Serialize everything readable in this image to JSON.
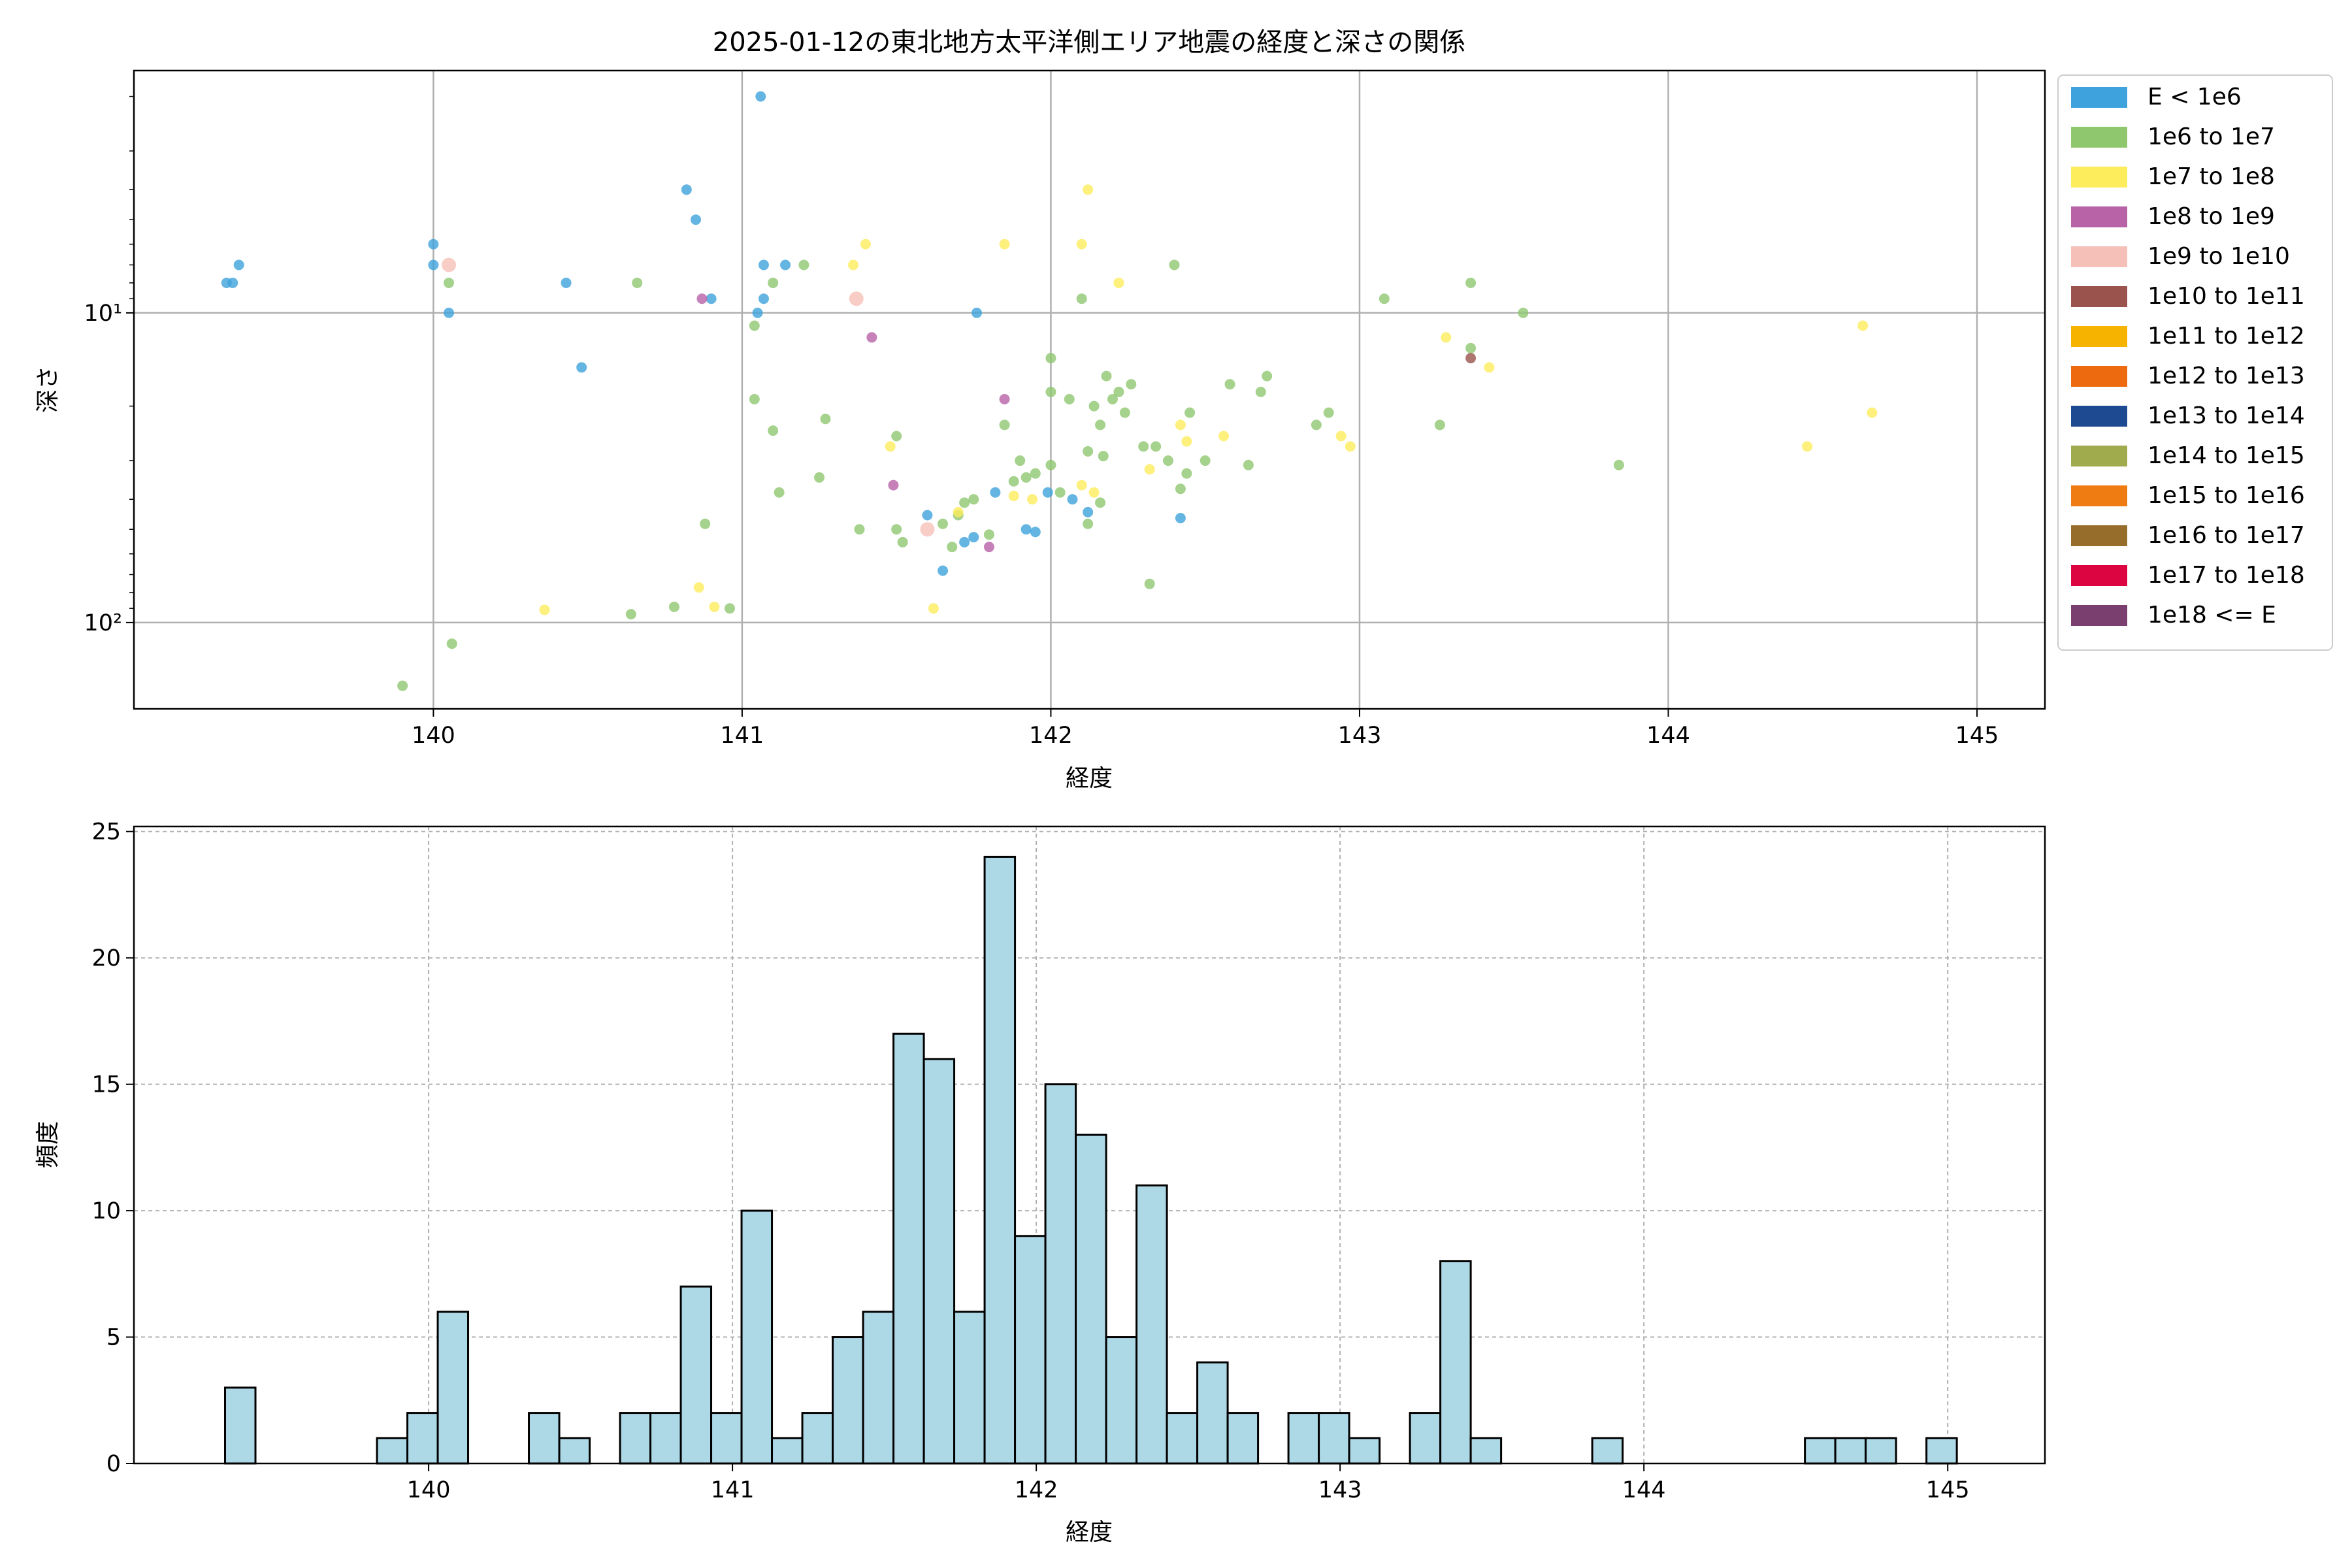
{
  "title": "2025-01-12の東北地方太平洋側エリア地震の経度と深さの関係",
  "chart_data": [
    {
      "type": "scatter",
      "title": "2025-01-12の東北地方太平洋側エリア地震の経度と深さの関係",
      "xlabel": "経度",
      "ylabel": "深さ",
      "xlim": [
        139.03,
        145.22
      ],
      "ylim": [
        190,
        1.65
      ],
      "yscale": "log",
      "y_inverted": true,
      "grid": true,
      "x_ticks": [
        "140",
        "141",
        "142",
        "143",
        "144",
        "145"
      ],
      "y_ticks": [
        "10¹",
        "10²"
      ],
      "legend_position": "outside-right",
      "legend": [
        {
          "label": "E < 1e6",
          "color": "#3ea2dc"
        },
        {
          "label": "1e6 to 1e7",
          "color": "#8fc76f"
        },
        {
          "label": "1e7 to 1e8",
          "color": "#fdec5c"
        },
        {
          "label": "1e8 to 1e9",
          "color": "#b862a8"
        },
        {
          "label": "1e9 to 1e10",
          "color": "#f5c0b8"
        },
        {
          "label": "1e10 to 1e11",
          "color": "#9a544d"
        },
        {
          "label": "1e11 to 1e12",
          "color": "#f6b300"
        },
        {
          "label": "1e12 to 1e13",
          "color": "#ee6a0e"
        },
        {
          "label": "1e13 to 1e14",
          "color": "#1d4a90"
        },
        {
          "label": "1e14 to 1e15",
          "color": "#9fab4d"
        },
        {
          "label": "1e15 to 1e16",
          "color": "#ef7c12"
        },
        {
          "label": "1e16 to 1e17",
          "color": "#976d2b"
        },
        {
          "label": "1e17 to 1e18",
          "color": "#dc0542"
        },
        {
          "label": "1e18 <= E",
          "color": "#7a3f6e"
        }
      ],
      "points": [
        {
          "x": 139.33,
          "y": 8,
          "c": 0
        },
        {
          "x": 139.35,
          "y": 8,
          "c": 0
        },
        {
          "x": 139.37,
          "y": 7,
          "c": 0
        },
        {
          "x": 140.0,
          "y": 6,
          "c": 0
        },
        {
          "x": 140.0,
          "y": 7,
          "c": 0
        },
        {
          "x": 140.05,
          "y": 10,
          "c": 0
        },
        {
          "x": 140.43,
          "y": 8,
          "c": 0
        },
        {
          "x": 140.48,
          "y": 15,
          "c": 0
        },
        {
          "x": 140.82,
          "y": 4,
          "c": 0
        },
        {
          "x": 140.85,
          "y": 5,
          "c": 0
        },
        {
          "x": 140.9,
          "y": 9,
          "c": 0
        },
        {
          "x": 141.06,
          "y": 2,
          "c": 0
        },
        {
          "x": 141.07,
          "y": 7,
          "c": 0
        },
        {
          "x": 141.07,
          "y": 9,
          "c": 0
        },
        {
          "x": 141.05,
          "y": 10,
          "c": 0
        },
        {
          "x": 141.14,
          "y": 7,
          "c": 0
        },
        {
          "x": 141.76,
          "y": 10,
          "c": 0
        },
        {
          "x": 141.6,
          "y": 45,
          "c": 0
        },
        {
          "x": 141.65,
          "y": 68,
          "c": 0
        },
        {
          "x": 141.72,
          "y": 55,
          "c": 0
        },
        {
          "x": 141.75,
          "y": 53,
          "c": 0
        },
        {
          "x": 141.82,
          "y": 38,
          "c": 0
        },
        {
          "x": 141.92,
          "y": 50,
          "c": 0
        },
        {
          "x": 141.95,
          "y": 51,
          "c": 0
        },
        {
          "x": 141.99,
          "y": 38,
          "c": 0
        },
        {
          "x": 142.07,
          "y": 40,
          "c": 0
        },
        {
          "x": 142.12,
          "y": 44,
          "c": 0
        },
        {
          "x": 142.42,
          "y": 46,
          "c": 0
        },
        {
          "x": 140.05,
          "y": 8,
          "c": 1
        },
        {
          "x": 140.66,
          "y": 8,
          "c": 1
        },
        {
          "x": 139.9,
          "y": 160,
          "c": 1
        },
        {
          "x": 140.06,
          "y": 117,
          "c": 1
        },
        {
          "x": 140.64,
          "y": 94,
          "c": 1
        },
        {
          "x": 140.78,
          "y": 89,
          "c": 1
        },
        {
          "x": 140.96,
          "y": 90,
          "c": 1
        },
        {
          "x": 140.88,
          "y": 48,
          "c": 1
        },
        {
          "x": 141.04,
          "y": 11,
          "c": 1
        },
        {
          "x": 141.1,
          "y": 8,
          "c": 1
        },
        {
          "x": 141.2,
          "y": 7,
          "c": 1
        },
        {
          "x": 141.04,
          "y": 19,
          "c": 1
        },
        {
          "x": 141.1,
          "y": 24,
          "c": 1
        },
        {
          "x": 141.12,
          "y": 38,
          "c": 1
        },
        {
          "x": 141.25,
          "y": 34,
          "c": 1
        },
        {
          "x": 141.27,
          "y": 22,
          "c": 1
        },
        {
          "x": 141.38,
          "y": 50,
          "c": 1
        },
        {
          "x": 141.5,
          "y": 25,
          "c": 1
        },
        {
          "x": 141.52,
          "y": 55,
          "c": 1
        },
        {
          "x": 141.5,
          "y": 50,
          "c": 1
        },
        {
          "x": 141.65,
          "y": 48,
          "c": 1
        },
        {
          "x": 141.68,
          "y": 57,
          "c": 1
        },
        {
          "x": 141.72,
          "y": 41,
          "c": 1
        },
        {
          "x": 141.75,
          "y": 40,
          "c": 1
        },
        {
          "x": 141.7,
          "y": 45,
          "c": 1
        },
        {
          "x": 141.8,
          "y": 52,
          "c": 1
        },
        {
          "x": 141.85,
          "y": 23,
          "c": 1
        },
        {
          "x": 141.88,
          "y": 35,
          "c": 1
        },
        {
          "x": 141.9,
          "y": 30,
          "c": 1
        },
        {
          "x": 141.92,
          "y": 34,
          "c": 1
        },
        {
          "x": 141.95,
          "y": 33,
          "c": 1
        },
        {
          "x": 142.0,
          "y": 18,
          "c": 1
        },
        {
          "x": 142.0,
          "y": 14,
          "c": 1
        },
        {
          "x": 142.0,
          "y": 31,
          "c": 1
        },
        {
          "x": 142.03,
          "y": 38,
          "c": 1
        },
        {
          "x": 142.06,
          "y": 19,
          "c": 1
        },
        {
          "x": 142.1,
          "y": 9,
          "c": 1
        },
        {
          "x": 142.12,
          "y": 28,
          "c": 1
        },
        {
          "x": 142.14,
          "y": 20,
          "c": 1
        },
        {
          "x": 142.16,
          "y": 23,
          "c": 1
        },
        {
          "x": 142.18,
          "y": 16,
          "c": 1
        },
        {
          "x": 142.2,
          "y": 19,
          "c": 1
        },
        {
          "x": 142.22,
          "y": 18,
          "c": 1
        },
        {
          "x": 142.24,
          "y": 21,
          "c": 1
        },
        {
          "x": 142.26,
          "y": 17,
          "c": 1
        },
        {
          "x": 142.16,
          "y": 41,
          "c": 1
        },
        {
          "x": 142.12,
          "y": 48,
          "c": 1
        },
        {
          "x": 142.17,
          "y": 29,
          "c": 1
        },
        {
          "x": 142.3,
          "y": 27,
          "c": 1
        },
        {
          "x": 142.34,
          "y": 27,
          "c": 1
        },
        {
          "x": 142.32,
          "y": 75,
          "c": 1
        },
        {
          "x": 142.38,
          "y": 30,
          "c": 1
        },
        {
          "x": 142.42,
          "y": 37,
          "c": 1
        },
        {
          "x": 142.44,
          "y": 33,
          "c": 1
        },
        {
          "x": 142.45,
          "y": 21,
          "c": 1
        },
        {
          "x": 142.5,
          "y": 30,
          "c": 1
        },
        {
          "x": 142.4,
          "y": 7,
          "c": 1
        },
        {
          "x": 142.58,
          "y": 17,
          "c": 1
        },
        {
          "x": 142.64,
          "y": 31,
          "c": 1
        },
        {
          "x": 142.68,
          "y": 18,
          "c": 1
        },
        {
          "x": 142.7,
          "y": 16,
          "c": 1
        },
        {
          "x": 142.86,
          "y": 23,
          "c": 1
        },
        {
          "x": 142.9,
          "y": 21,
          "c": 1
        },
        {
          "x": 143.08,
          "y": 9,
          "c": 1
        },
        {
          "x": 143.26,
          "y": 23,
          "c": 1
        },
        {
          "x": 143.36,
          "y": 8,
          "c": 1
        },
        {
          "x": 143.36,
          "y": 13,
          "c": 1
        },
        {
          "x": 143.53,
          "y": 10,
          "c": 1
        },
        {
          "x": 143.84,
          "y": 31,
          "c": 1
        },
        {
          "x": 140.36,
          "y": 91,
          "c": 2
        },
        {
          "x": 140.86,
          "y": 77,
          "c": 2
        },
        {
          "x": 140.91,
          "y": 89,
          "c": 2
        },
        {
          "x": 141.36,
          "y": 7,
          "c": 2
        },
        {
          "x": 141.4,
          "y": 6,
          "c": 2
        },
        {
          "x": 141.48,
          "y": 27,
          "c": 2
        },
        {
          "x": 141.62,
          "y": 90,
          "c": 2
        },
        {
          "x": 141.7,
          "y": 44,
          "c": 2
        },
        {
          "x": 141.85,
          "y": 6,
          "c": 2
        },
        {
          "x": 141.88,
          "y": 39,
          "c": 2
        },
        {
          "x": 141.94,
          "y": 40,
          "c": 2
        },
        {
          "x": 142.1,
          "y": 6,
          "c": 2
        },
        {
          "x": 142.12,
          "y": 4,
          "c": 2
        },
        {
          "x": 142.1,
          "y": 36,
          "c": 2
        },
        {
          "x": 142.14,
          "y": 38,
          "c": 2
        },
        {
          "x": 142.22,
          "y": 8,
          "c": 2
        },
        {
          "x": 142.32,
          "y": 32,
          "c": 2
        },
        {
          "x": 142.42,
          "y": 23,
          "c": 2
        },
        {
          "x": 142.44,
          "y": 26,
          "c": 2
        },
        {
          "x": 142.56,
          "y": 25,
          "c": 2
        },
        {
          "x": 142.94,
          "y": 25,
          "c": 2
        },
        {
          "x": 142.97,
          "y": 27,
          "c": 2
        },
        {
          "x": 143.28,
          "y": 12,
          "c": 2
        },
        {
          "x": 143.42,
          "y": 15,
          "c": 2
        },
        {
          "x": 144.45,
          "y": 27,
          "c": 2
        },
        {
          "x": 144.63,
          "y": 11,
          "c": 2
        },
        {
          "x": 144.66,
          "y": 21,
          "c": 2
        },
        {
          "x": 140.87,
          "y": 9,
          "c": 3
        },
        {
          "x": 141.42,
          "y": 12,
          "c": 3
        },
        {
          "x": 141.49,
          "y": 36,
          "c": 3
        },
        {
          "x": 141.85,
          "y": 19,
          "c": 3
        },
        {
          "x": 141.8,
          "y": 57,
          "c": 3
        },
        {
          "x": 140.05,
          "y": 7,
          "c": 4
        },
        {
          "x": 141.37,
          "y": 9,
          "c": 4
        },
        {
          "x": 141.6,
          "y": 50,
          "c": 4
        },
        {
          "x": 143.36,
          "y": 14,
          "c": 5
        }
      ]
    },
    {
      "type": "bar",
      "title": "",
      "xlabel": "経度",
      "ylabel": "頻度",
      "xlim": [
        139.03,
        145.32
      ],
      "ylim": [
        0,
        25.2
      ],
      "grid": true,
      "x_ticks": [
        "140",
        "141",
        "142",
        "143",
        "144",
        "145"
      ],
      "y_ticks": [
        "0",
        "5",
        "10",
        "15",
        "20",
        "25"
      ],
      "bar_color": "#add8e6",
      "bin_start": 139.33,
      "bin_width": 0.1,
      "values": [
        3,
        0,
        0,
        0,
        0,
        1,
        2,
        6,
        0,
        0,
        2,
        1,
        0,
        2,
        2,
        7,
        2,
        10,
        1,
        2,
        5,
        6,
        17,
        16,
        6,
        24,
        9,
        15,
        13,
        5,
        11,
        2,
        4,
        2,
        0,
        2,
        2,
        1,
        0,
        2,
        8,
        1,
        0,
        0,
        0,
        1,
        0,
        0,
        0,
        0,
        0,
        0,
        1,
        1,
        1,
        0,
        1
      ]
    }
  ]
}
